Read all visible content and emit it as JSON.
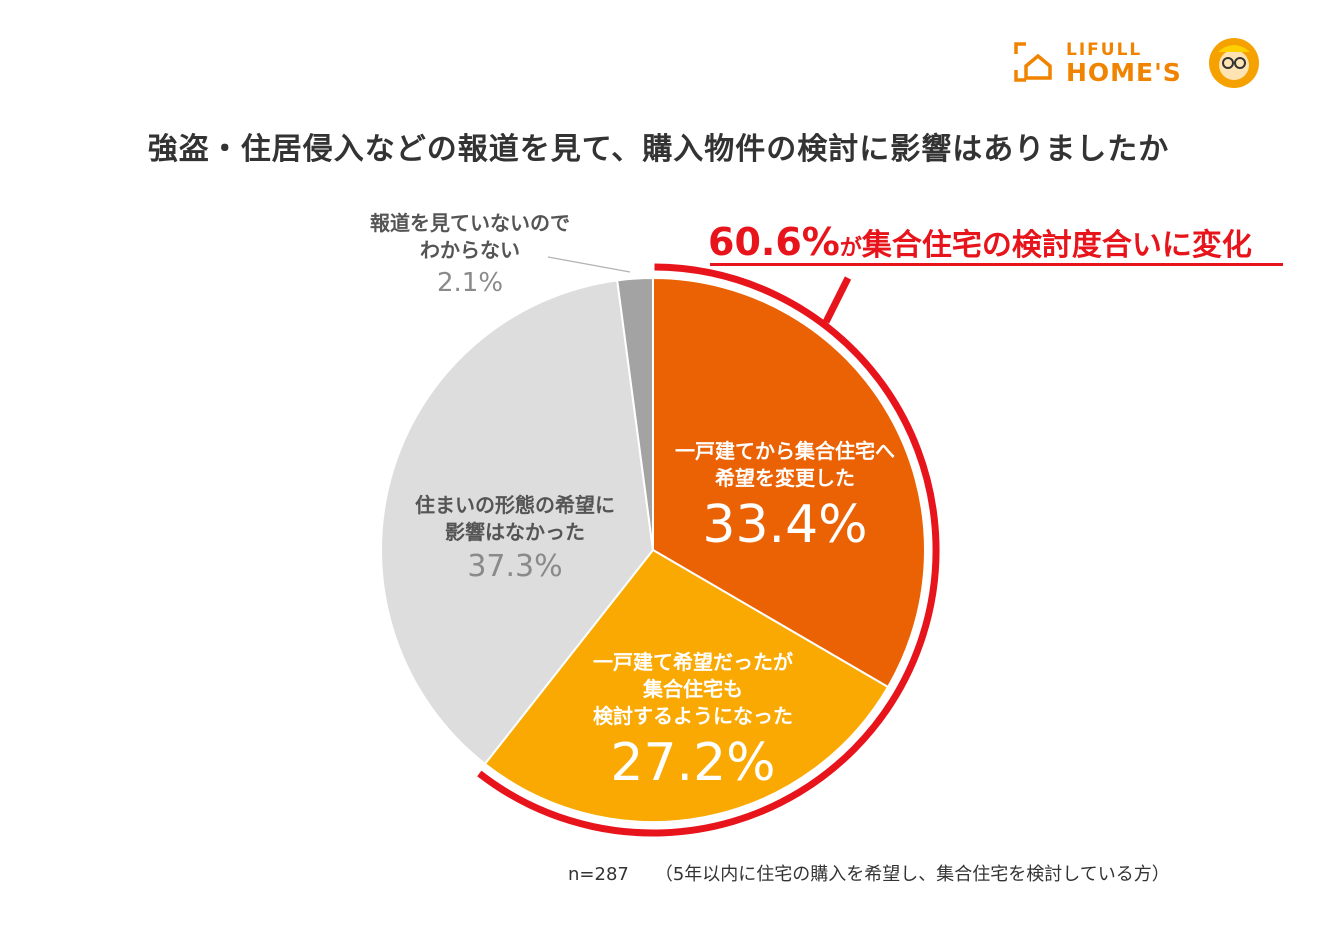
{
  "logo": {
    "line1": "LIFULL",
    "line2": "HOME'S"
  },
  "title": "強盗・住居侵入などの報道を見て、購入物件の検討に影響はありましたか",
  "callout": {
    "percent": "60.6%",
    "particle": "が",
    "text": "集合住宅の検討度合いに変化"
  },
  "colors": {
    "orange": "#ea6204",
    "yellow": "#f9a902",
    "light_gray": "#dddddd",
    "dark_gray": "#a3a3a3",
    "red": "#e8141c"
  },
  "chart_data": {
    "type": "pie",
    "title": "強盗・住居侵入などの報道を見て、購入物件の検討に影響はありましたか",
    "start": "12 o'clock, clockwise",
    "slices": [
      {
        "label_lines": [
          "一戸建てから集合住宅へ",
          "希望を変更した"
        ],
        "value": 33.4,
        "display": "33.4%"
      },
      {
        "label_lines": [
          "一戸建て希望だったが",
          "集合住宅も",
          "検討するようになった"
        ],
        "value": 27.2,
        "display": "27.2%"
      },
      {
        "label_lines": [
          "住まいの形態の希望に",
          "影響はなかった"
        ],
        "value": 37.3,
        "display": "37.3%"
      },
      {
        "label_lines": [
          "報道を見ていないので",
          "わからない"
        ],
        "value": 2.1,
        "display": "2.1%"
      }
    ],
    "highlight": {
      "slices": [
        0,
        1
      ],
      "total": 60.6
    }
  },
  "footnote": {
    "n": "n=287",
    "note": "（5年以内に住宅の購入を希望し、集合住宅を検討している方）"
  }
}
